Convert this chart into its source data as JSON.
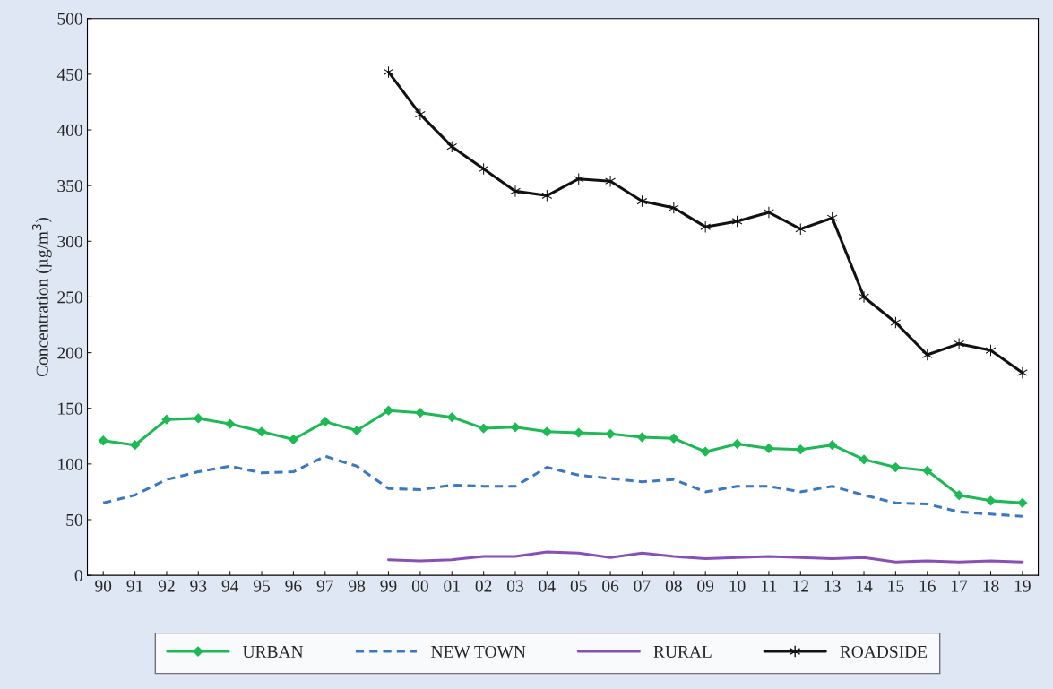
{
  "chart_data": {
    "type": "line",
    "ylabel": "Concentration (µg/m$^{3}$)",
    "categories": [
      "90",
      "91",
      "92",
      "93",
      "94",
      "95",
      "96",
      "97",
      "98",
      "99",
      "00",
      "01",
      "02",
      "03",
      "04",
      "05",
      "06",
      "07",
      "08",
      "09",
      "10",
      "11",
      "12",
      "13",
      "14",
      "15",
      "16",
      "17",
      "18",
      "19"
    ],
    "series": [
      {
        "name": "URBAN",
        "color": "#1db954",
        "marker": "diamond",
        "line_style": "solid",
        "values": [
          121,
          117,
          140,
          141,
          136,
          129,
          122,
          138,
          130,
          148,
          146,
          142,
          132,
          133,
          129,
          128,
          127,
          124,
          123,
          111,
          118,
          114,
          113,
          117,
          104,
          97,
          94,
          72,
          67,
          65
        ]
      },
      {
        "name": "NEW TOWN",
        "color": "#3a78c2",
        "marker": "none",
        "line_style": "dashed",
        "values": [
          65,
          72,
          86,
          93,
          98,
          92,
          93,
          107,
          98,
          78,
          77,
          81,
          80,
          80,
          97,
          90,
          87,
          84,
          86,
          75,
          80,
          80,
          75,
          80,
          72,
          65,
          64,
          57,
          55,
          53
        ]
      },
      {
        "name": "RURAL",
        "color": "#8a4fb5",
        "marker": "none",
        "line_style": "solid",
        "values": [
          null,
          null,
          null,
          null,
          null,
          null,
          null,
          null,
          null,
          14,
          13,
          14,
          17,
          17,
          21,
          20,
          16,
          20,
          17,
          15,
          16,
          17,
          16,
          15,
          16,
          12,
          13,
          12,
          13,
          12
        ]
      },
      {
        "name": "ROADSIDE",
        "color": "#111111",
        "marker": "cross",
        "line_style": "solid",
        "values": [
          null,
          null,
          null,
          null,
          null,
          null,
          null,
          null,
          null,
          452,
          414,
          385,
          365,
          345,
          341,
          356,
          354,
          336,
          330,
          313,
          318,
          326,
          311,
          321,
          250,
          227,
          198,
          208,
          202,
          182
        ]
      }
    ],
    "ylim": [
      0,
      500
    ],
    "yticks": [
      0,
      50,
      100,
      150,
      200,
      250,
      300,
      350,
      400,
      450,
      500
    ],
    "grid": false,
    "legend": "bottom"
  }
}
